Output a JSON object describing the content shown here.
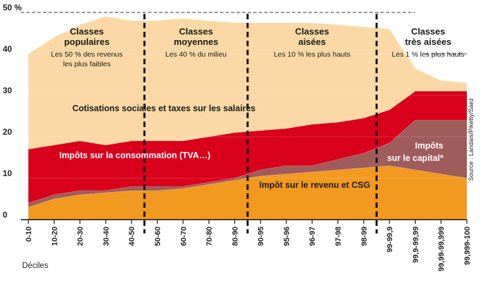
{
  "chart_data": {
    "type": "area",
    "stacked": true,
    "categories": [
      "0-10",
      "10-20",
      "20-30",
      "30-40",
      "40-50",
      "50-60",
      "60-70",
      "70-80",
      "80-90",
      "90-95",
      "95-96",
      "96-97",
      "97-98",
      "98-99",
      "99-99,9",
      "99,9-99,99",
      "99,99-99,999",
      "99,999-100"
    ],
    "y_ticks": [
      "0",
      "10",
      "20",
      "30",
      "40",
      "50 %"
    ],
    "ylim": [
      0,
      50
    ],
    "xlabel": "Déciles",
    "ylabel": "",
    "series": [
      {
        "name": "Impôt sur le revenu et CSG",
        "color": "#f29a1f",
        "values": [
          3,
          5,
          6,
          6.5,
          7,
          7,
          7.5,
          8.5,
          9.5,
          10.5,
          11,
          11.5,
          12,
          12.5,
          13,
          12,
          11,
          10
        ]
      },
      {
        "name": "Impôts sur le capital*",
        "color": "#a05b5b",
        "values": [
          1,
          1,
          1,
          0.5,
          1,
          1,
          0.5,
          0.5,
          0.5,
          1.5,
          2,
          1.5,
          2.5,
          3.5,
          5.5,
          12,
          13,
          14
        ]
      },
      {
        "name": "Impôts sur la consommation (TVA...)",
        "color": "#d9001b",
        "values": [
          13,
          12,
          12,
          11,
          11,
          11,
          11,
          11,
          11,
          9.5,
          9,
          10,
          9,
          8.5,
          8,
          7,
          7,
          7
        ]
      },
      {
        "name": "Cotisations sociales et taxes sur les salaires",
        "color": "#fbd9a6",
        "values": [
          23,
          26,
          28,
          31,
          29,
          29,
          29.5,
          28,
          26.5,
          26,
          25.5,
          24.5,
          23.5,
          22,
          19.5,
          5.5,
          2.5,
          2
        ]
      }
    ],
    "groups": [
      {
        "title": [
          "Classes",
          "populaires"
        ],
        "subtitle": [
          "Les 50 % des revenus",
          "les plus faibles"
        ],
        "range": [
          0,
          4
        ]
      },
      {
        "title": [
          "Classes",
          "moyennes"
        ],
        "subtitle": [
          "Les 40 % du milieu"
        ],
        "range": [
          5,
          8
        ]
      },
      {
        "title": [
          "Classes",
          "aisées"
        ],
        "subtitle": [
          "Les 10 % les plus hauts"
        ],
        "range": [
          9,
          13
        ]
      },
      {
        "title": [
          "Classes",
          "très aisées"
        ],
        "subtitle": [
          "Les 1 % les plus hauts"
        ],
        "range": [
          14,
          17
        ]
      }
    ],
    "area_labels": {
      "cotisations": "Cotisations sociales et taxes sur les salaires",
      "consommation": "Impôts sur la consommation (TVA…)",
      "capital": [
        "Impôts",
        "sur le capital*"
      ],
      "revenu": "Impôt sur le revenu et CSG"
    },
    "source": "Source : Landais/Piketty/Saez",
    "grid": true
  }
}
